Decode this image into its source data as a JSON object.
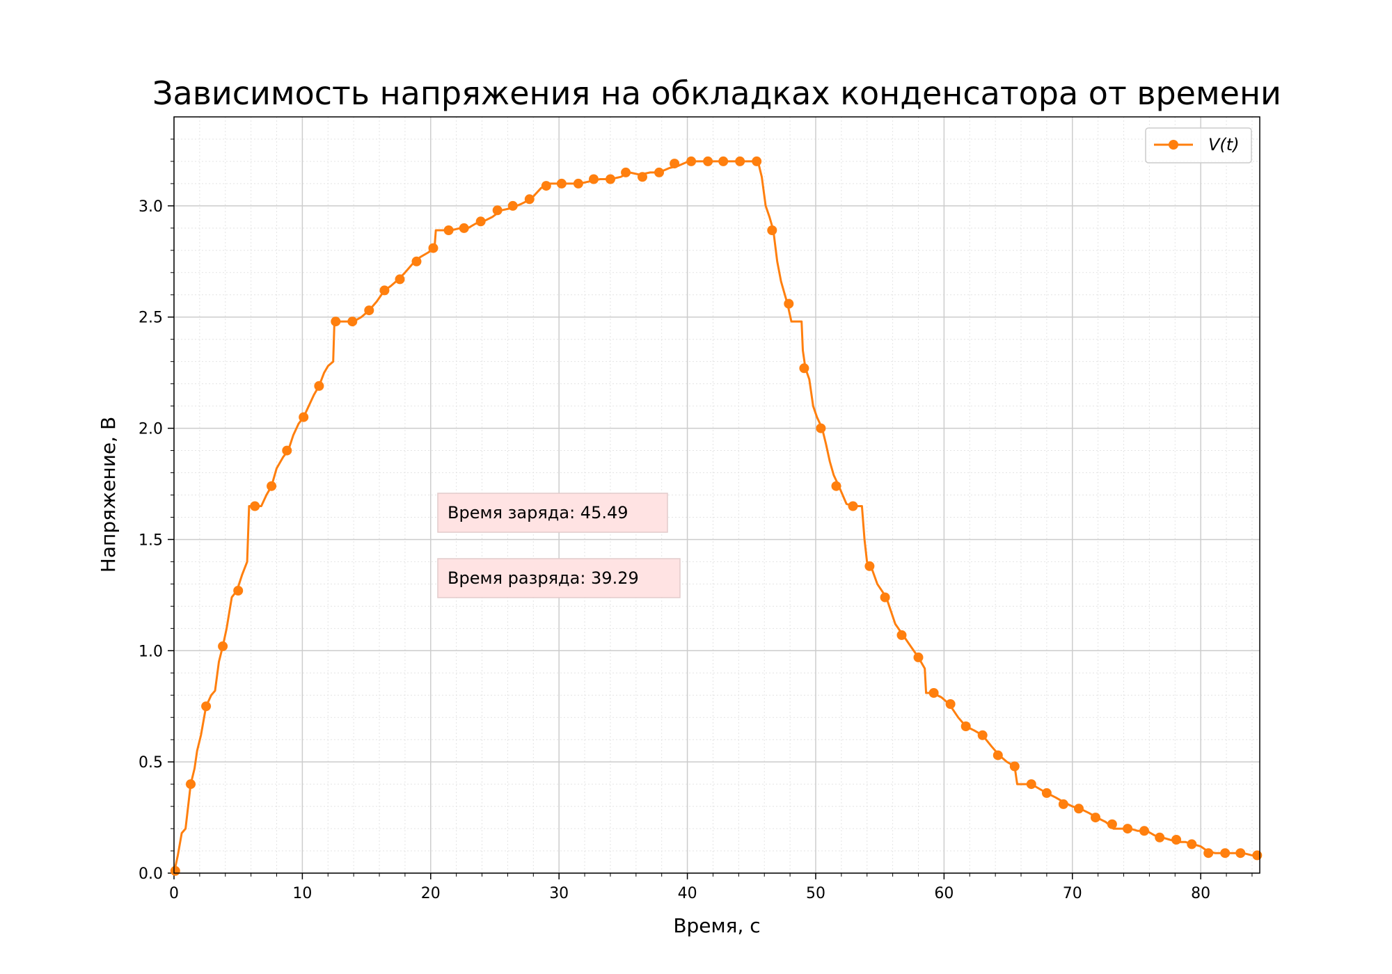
{
  "chart_data": {
    "type": "line",
    "title": "Зависимость напряжения на обкладках конденсатора от времени",
    "xlabel": "Время, с",
    "ylabel": "Напряжение, В",
    "xlim": [
      0,
      84.6
    ],
    "ylim": [
      0,
      3.4
    ],
    "x_ticks": [
      0,
      10,
      20,
      30,
      40,
      50,
      60,
      70,
      80
    ],
    "y_ticks": [
      0.0,
      0.5,
      1.0,
      1.5,
      2.0,
      2.5,
      3.0
    ],
    "y_tick_labels": [
      "0.0",
      "0.5",
      "1.0",
      "1.5",
      "2.0",
      "2.5",
      "3.0"
    ],
    "grid": "major and minor",
    "legend_position": "top-right",
    "line_color": "#ff7f0e",
    "series": [
      {
        "name": "V(t)",
        "line": [
          [
            0,
            0.0
          ],
          [
            0.3,
            0.08
          ],
          [
            0.6,
            0.18
          ],
          [
            0.9,
            0.2
          ],
          [
            1.1,
            0.3
          ],
          [
            1.3,
            0.4
          ],
          [
            1.6,
            0.47
          ],
          [
            1.8,
            0.55
          ],
          [
            2.1,
            0.62
          ],
          [
            2.5,
            0.75
          ],
          [
            2.9,
            0.8
          ],
          [
            3.2,
            0.82
          ],
          [
            3.5,
            0.95
          ],
          [
            3.8,
            1.02
          ],
          [
            4.1,
            1.1
          ],
          [
            4.5,
            1.24
          ],
          [
            4.9,
            1.27
          ],
          [
            5.3,
            1.34
          ],
          [
            5.7,
            1.4
          ],
          [
            5.85,
            1.65
          ],
          [
            6.3,
            1.65
          ],
          [
            6.8,
            1.65
          ],
          [
            7.2,
            1.7
          ],
          [
            7.6,
            1.74
          ],
          [
            8.0,
            1.82
          ],
          [
            8.5,
            1.87
          ],
          [
            8.9,
            1.9
          ],
          [
            9.3,
            1.97
          ],
          [
            9.7,
            2.02
          ],
          [
            10.1,
            2.05
          ],
          [
            10.5,
            2.1
          ],
          [
            10.9,
            2.15
          ],
          [
            11.3,
            2.19
          ],
          [
            11.7,
            2.25
          ],
          [
            12.0,
            2.28
          ],
          [
            12.4,
            2.3
          ],
          [
            12.5,
            2.48
          ],
          [
            13.0,
            2.48
          ],
          [
            13.5,
            2.48
          ],
          [
            14.0,
            2.48
          ],
          [
            14.6,
            2.5
          ],
          [
            15.2,
            2.53
          ],
          [
            15.8,
            2.57
          ],
          [
            16.4,
            2.62
          ],
          [
            16.9,
            2.64
          ],
          [
            17.5,
            2.67
          ],
          [
            18.0,
            2.7
          ],
          [
            18.6,
            2.74
          ],
          [
            19.2,
            2.77
          ],
          [
            19.8,
            2.79
          ],
          [
            20.3,
            2.81
          ],
          [
            20.4,
            2.89
          ],
          [
            21.0,
            2.89
          ],
          [
            21.6,
            2.89
          ],
          [
            22.3,
            2.9
          ],
          [
            22.9,
            2.9
          ],
          [
            23.5,
            2.92
          ],
          [
            24.1,
            2.93
          ],
          [
            24.8,
            2.95
          ],
          [
            25.5,
            2.98
          ],
          [
            26.3,
            2.99
          ],
          [
            27.1,
            3.01
          ],
          [
            27.8,
            3.03
          ],
          [
            28.6,
            3.08
          ],
          [
            29.2,
            3.1
          ],
          [
            30.1,
            3.1
          ],
          [
            30.9,
            3.1
          ],
          [
            31.6,
            3.1
          ],
          [
            32.4,
            3.11
          ],
          [
            33.2,
            3.12
          ],
          [
            34.0,
            3.12
          ],
          [
            34.8,
            3.13
          ],
          [
            35.5,
            3.15
          ],
          [
            36.3,
            3.14
          ],
          [
            37.1,
            3.15
          ],
          [
            37.8,
            3.15
          ],
          [
            38.6,
            3.17
          ],
          [
            39.3,
            3.18
          ],
          [
            40.1,
            3.2
          ],
          [
            40.8,
            3.2
          ],
          [
            41.6,
            3.2
          ],
          [
            42.4,
            3.2
          ],
          [
            43.1,
            3.2
          ],
          [
            43.9,
            3.2
          ],
          [
            44.7,
            3.2
          ],
          [
            45.5,
            3.2
          ],
          [
            45.8,
            3.13
          ],
          [
            46.1,
            3.0
          ],
          [
            46.4,
            2.95
          ],
          [
            46.7,
            2.89
          ],
          [
            47.0,
            2.75
          ],
          [
            47.3,
            2.66
          ],
          [
            47.6,
            2.6
          ],
          [
            47.8,
            2.56
          ],
          [
            48.1,
            2.48
          ],
          [
            48.9,
            2.48
          ],
          [
            49.0,
            2.35
          ],
          [
            49.2,
            2.27
          ],
          [
            49.5,
            2.22
          ],
          [
            49.8,
            2.1
          ],
          [
            50.1,
            2.05
          ],
          [
            50.5,
            2.0
          ],
          [
            50.8,
            1.93
          ],
          [
            51.1,
            1.85
          ],
          [
            51.4,
            1.79
          ],
          [
            51.8,
            1.74
          ],
          [
            52.1,
            1.7
          ],
          [
            52.4,
            1.66
          ],
          [
            53.0,
            1.65
          ],
          [
            53.6,
            1.65
          ],
          [
            53.8,
            1.5
          ],
          [
            54.0,
            1.4
          ],
          [
            54.3,
            1.38
          ],
          [
            54.8,
            1.3
          ],
          [
            55.5,
            1.24
          ],
          [
            56.2,
            1.12
          ],
          [
            56.8,
            1.07
          ],
          [
            57.4,
            1.02
          ],
          [
            58.0,
            0.97
          ],
          [
            58.5,
            0.92
          ],
          [
            58.6,
            0.81
          ],
          [
            59.1,
            0.81
          ],
          [
            59.8,
            0.79
          ],
          [
            60.4,
            0.76
          ],
          [
            61.1,
            0.7
          ],
          [
            61.7,
            0.66
          ],
          [
            62.4,
            0.64
          ],
          [
            63.0,
            0.62
          ],
          [
            63.7,
            0.57
          ],
          [
            64.3,
            0.53
          ],
          [
            64.9,
            0.5
          ],
          [
            65.5,
            0.48
          ],
          [
            65.7,
            0.4
          ],
          [
            66.2,
            0.4
          ],
          [
            66.8,
            0.4
          ],
          [
            67.4,
            0.38
          ],
          [
            68.0,
            0.36
          ],
          [
            68.7,
            0.34
          ],
          [
            69.3,
            0.32
          ],
          [
            70.0,
            0.3
          ],
          [
            70.6,
            0.29
          ],
          [
            71.3,
            0.27
          ],
          [
            71.9,
            0.25
          ],
          [
            72.6,
            0.23
          ],
          [
            73.2,
            0.2
          ],
          [
            74.5,
            0.2
          ],
          [
            75.1,
            0.19
          ],
          [
            75.8,
            0.19
          ],
          [
            76.4,
            0.17
          ],
          [
            77.0,
            0.16
          ],
          [
            77.6,
            0.15
          ],
          [
            78.2,
            0.14
          ],
          [
            78.8,
            0.14
          ],
          [
            79.4,
            0.13
          ],
          [
            80.0,
            0.12
          ],
          [
            80.5,
            0.1
          ],
          [
            81.1,
            0.09
          ],
          [
            81.8,
            0.09
          ],
          [
            82.5,
            0.09
          ],
          [
            83.3,
            0.09
          ],
          [
            84.0,
            0.08
          ],
          [
            84.6,
            0.08
          ]
        ],
        "markers": [
          [
            0.1,
            0.01
          ],
          [
            1.3,
            0.4
          ],
          [
            2.5,
            0.75
          ],
          [
            3.8,
            1.02
          ],
          [
            5.0,
            1.27
          ],
          [
            6.3,
            1.65
          ],
          [
            7.6,
            1.74
          ],
          [
            8.8,
            1.9
          ],
          [
            10.1,
            2.05
          ],
          [
            11.3,
            2.19
          ],
          [
            12.6,
            2.48
          ],
          [
            13.9,
            2.48
          ],
          [
            15.2,
            2.53
          ],
          [
            16.4,
            2.62
          ],
          [
            17.6,
            2.67
          ],
          [
            18.9,
            2.75
          ],
          [
            20.2,
            2.81
          ],
          [
            21.4,
            2.89
          ],
          [
            22.6,
            2.9
          ],
          [
            23.9,
            2.93
          ],
          [
            25.2,
            2.98
          ],
          [
            26.4,
            3.0
          ],
          [
            27.7,
            3.03
          ],
          [
            29.0,
            3.09
          ],
          [
            30.2,
            3.1
          ],
          [
            31.5,
            3.1
          ],
          [
            32.7,
            3.12
          ],
          [
            34.0,
            3.12
          ],
          [
            35.2,
            3.15
          ],
          [
            36.5,
            3.13
          ],
          [
            37.8,
            3.15
          ],
          [
            39.0,
            3.19
          ],
          [
            40.3,
            3.2
          ],
          [
            41.6,
            3.2
          ],
          [
            42.8,
            3.2
          ],
          [
            44.1,
            3.2
          ],
          [
            45.4,
            3.2
          ],
          [
            46.6,
            2.89
          ],
          [
            47.9,
            2.56
          ],
          [
            49.1,
            2.27
          ],
          [
            50.4,
            2.0
          ],
          [
            51.6,
            1.74
          ],
          [
            52.9,
            1.65
          ],
          [
            54.2,
            1.38
          ],
          [
            55.4,
            1.24
          ],
          [
            56.7,
            1.07
          ],
          [
            58.0,
            0.97
          ],
          [
            59.2,
            0.81
          ],
          [
            60.5,
            0.76
          ],
          [
            61.7,
            0.66
          ],
          [
            63.0,
            0.62
          ],
          [
            64.2,
            0.53
          ],
          [
            65.5,
            0.48
          ],
          [
            66.8,
            0.4
          ],
          [
            68.0,
            0.36
          ],
          [
            69.3,
            0.31
          ],
          [
            70.5,
            0.29
          ],
          [
            71.8,
            0.25
          ],
          [
            73.1,
            0.22
          ],
          [
            74.3,
            0.2
          ],
          [
            75.6,
            0.19
          ],
          [
            76.8,
            0.16
          ],
          [
            78.1,
            0.15
          ],
          [
            79.3,
            0.13
          ],
          [
            80.6,
            0.09
          ],
          [
            81.9,
            0.09
          ],
          [
            83.1,
            0.09
          ],
          [
            84.4,
            0.08
          ]
        ]
      }
    ],
    "legend": {
      "label_prefix": "V(",
      "label_var": "t",
      "label_suffix": ")"
    },
    "annotations": [
      {
        "text": "Время заряда: 45.49"
      },
      {
        "text": "Время разряда: 39.29"
      }
    ]
  }
}
